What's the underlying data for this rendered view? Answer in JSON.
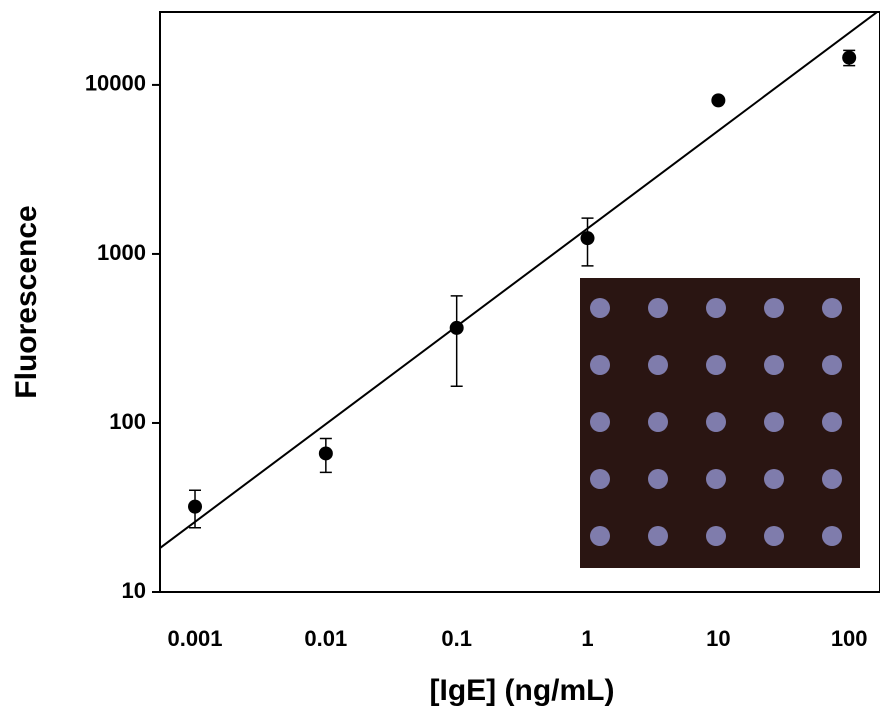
{
  "chart_data": {
    "type": "scatter",
    "x_label": "[IgE] (ng/mL)",
    "y_label": "Fluorescence",
    "x": [
      0.001,
      0.01,
      0.1,
      1,
      10,
      100
    ],
    "series": [
      {
        "color": "#000000",
        "values": [
          32,
          66,
          365,
          1240,
          8100,
          14500
        ],
        "errors": [
          8,
          15,
          200,
          390,
          0,
          1500
        ]
      }
    ],
    "fit": {
      "color": "#000000",
      "x": [
        0.00054,
        172
      ],
      "values": [
        18.2,
        27800
      ]
    },
    "xlim": [
      0.00054,
      172
    ],
    "ylim": [
      10,
      27000
    ],
    "xticks": [
      0.001,
      0.01,
      0.1,
      1,
      10,
      100
    ],
    "yticks": [
      10,
      100,
      1000,
      10000
    ],
    "x_log": true,
    "y_log": true
  }
}
